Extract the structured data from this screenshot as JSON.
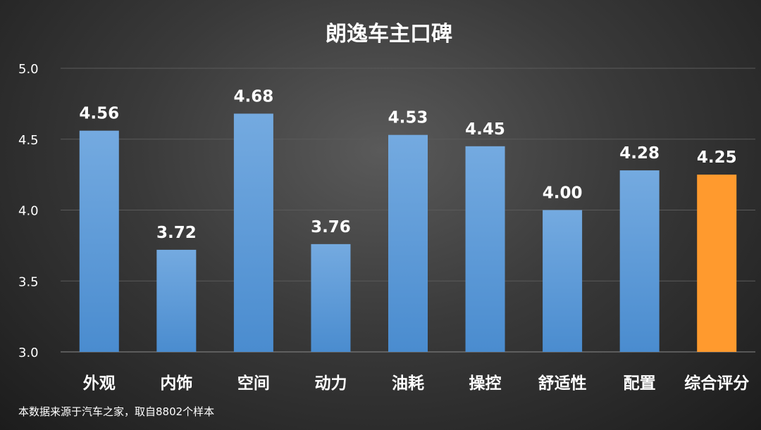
{
  "chart_data": {
    "type": "bar",
    "title": "朗逸车主口碑",
    "categories": [
      "外观",
      "内饰",
      "空间",
      "动力",
      "油耗",
      "操控",
      "舒适性",
      "配置",
      "综合评分"
    ],
    "values": [
      4.56,
      3.72,
      4.68,
      3.76,
      4.53,
      4.45,
      4.0,
      4.28,
      4.25
    ],
    "value_labels": [
      "4.56",
      "3.72",
      "4.68",
      "3.76",
      "4.53",
      "4.45",
      "4.00",
      "4.28",
      "4.25"
    ],
    "ylim": [
      3.0,
      5.0
    ],
    "yticks": [
      "3.0",
      "3.5",
      "4.0",
      "4.5",
      "5.0"
    ],
    "grid": true,
    "legend": "none",
    "colors": {
      "bar": "#5b9bd5",
      "highlight": "#ff9a2e",
      "highlight_index": 8,
      "grid": "#5a5a5a",
      "text": "#ffffff"
    },
    "footnote": "本数据来源于汽车之家，取自8802个样本"
  }
}
